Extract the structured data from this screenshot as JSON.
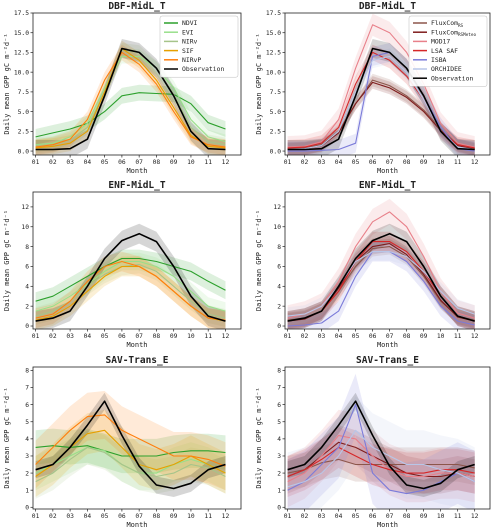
{
  "chart_data": [
    {
      "panel": "DBF-MidL_T (VI models)",
      "type": "line",
      "title": "DBF-MidL_T",
      "xlabel": "Month",
      "ylabel": "Daily mean GPP gC m⁻²d⁻¹",
      "ylim": [
        -0.5,
        17.5
      ],
      "yticks": [
        0.0,
        2.5,
        5.0,
        7.5,
        10.0,
        12.5,
        15.0,
        17.5
      ],
      "ytick_labels": [
        "0.0",
        "2.5",
        "5.0",
        "7.5",
        "10.0",
        "12.5",
        "15.0",
        "17.5"
      ],
      "xticks": [
        "01",
        "02",
        "03",
        "04",
        "05",
        "06",
        "07",
        "08",
        "09",
        "10",
        "11",
        "12"
      ],
      "legend_position": "top-right",
      "series": [
        {
          "name": "NDVI",
          "color": "#2ca02c",
          "band": 1.0,
          "values": [
            1.8,
            2.3,
            2.8,
            3.5,
            5.0,
            7.0,
            7.4,
            7.3,
            7.2,
            6.0,
            3.6,
            2.8
          ]
        },
        {
          "name": "EVI",
          "color": "#98df8a",
          "band": 0.9,
          "values": [
            0.8,
            1.0,
            1.8,
            3.5,
            8.0,
            12.0,
            12.0,
            10.5,
            8.0,
            4.0,
            1.8,
            1.2
          ]
        },
        {
          "name": "NIRv",
          "color": "#a6c48a",
          "band": 0.9,
          "values": [
            0.6,
            0.8,
            1.4,
            3.0,
            7.5,
            12.8,
            12.5,
            10.5,
            7.2,
            3.0,
            1.2,
            0.8
          ]
        },
        {
          "name": "SIF",
          "color": "#e6a000",
          "band": 1.0,
          "values": [
            0.4,
            0.6,
            1.0,
            2.5,
            7.5,
            13.0,
            11.5,
            9.0,
            5.5,
            2.0,
            0.6,
            0.4
          ]
        },
        {
          "name": "NIRvP",
          "color": "#ff7f0e",
          "band": 1.0,
          "values": [
            0.5,
            0.8,
            1.5,
            4.0,
            9.0,
            12.5,
            11.0,
            8.5,
            5.0,
            1.8,
            0.8,
            0.5
          ]
        },
        {
          "name": "Observation",
          "color": "#000000",
          "band": 1.2,
          "values": [
            0.2,
            0.2,
            0.3,
            1.5,
            7.0,
            13.0,
            12.5,
            10.5,
            7.0,
            2.5,
            0.3,
            0.2
          ]
        }
      ]
    },
    {
      "panel": "DBF-MidL_T (process models)",
      "type": "line",
      "title": "DBF-MidL_T",
      "xlabel": "Month",
      "ylabel": "Daily mean GPP gC m⁻²d⁻¹",
      "ylim": [
        -0.5,
        17.5
      ],
      "yticks": [
        0.0,
        2.5,
        5.0,
        7.5,
        10.0,
        12.5,
        15.0,
        17.5
      ],
      "ytick_labels": [
        "0.0",
        "2.5",
        "5.0",
        "7.5",
        "10.0",
        "12.5",
        "15.0",
        "17.5"
      ],
      "xticks": [
        "01",
        "02",
        "03",
        "04",
        "05",
        "06",
        "07",
        "08",
        "09",
        "10",
        "11",
        "12"
      ],
      "legend_position": "top-right",
      "series": [
        {
          "name": "FluxCom",
          "name_sub": "RS",
          "color": "#8c564b",
          "band": 0.8,
          "values": [
            0.3,
            0.4,
            0.8,
            2.5,
            6.0,
            9.0,
            8.3,
            7.0,
            5.2,
            2.8,
            0.8,
            0.3
          ]
        },
        {
          "name": "FluxCom",
          "name_sub": "RSMeteo",
          "color": "#7f1d1d",
          "band": 0.8,
          "values": [
            0.2,
            0.3,
            0.7,
            2.3,
            6.0,
            8.7,
            8.0,
            6.8,
            5.0,
            2.6,
            0.7,
            0.2
          ]
        },
        {
          "name": "MOD17",
          "color": "#e8808a",
          "band": 1.4,
          "values": [
            0.5,
            0.6,
            1.2,
            4.0,
            10.5,
            16.0,
            15.0,
            12.5,
            8.5,
            3.5,
            1.0,
            0.5
          ]
        },
        {
          "name": "LSA SAF",
          "color": "#d62728",
          "band": 1.0,
          "values": [
            0.4,
            0.5,
            1.0,
            3.0,
            8.5,
            12.5,
            11.5,
            9.5,
            6.5,
            2.5,
            0.8,
            0.4
          ]
        },
        {
          "name": "ISBA",
          "color": "#7b7bd9",
          "band": 1.2,
          "values": [
            0.0,
            0.0,
            0.1,
            0.2,
            1.0,
            12.0,
            12.5,
            10.5,
            7.0,
            3.0,
            0.3,
            0.0
          ]
        },
        {
          "name": "ORCHIDEE",
          "color": "#b8c6e8",
          "band": 1.0,
          "values": [
            0.2,
            0.3,
            0.7,
            2.5,
            7.5,
            11.5,
            12.0,
            10.0,
            6.5,
            2.5,
            0.5,
            0.2
          ]
        },
        {
          "name": "Observation",
          "color": "#000000",
          "band": 1.2,
          "values": [
            0.2,
            0.2,
            0.3,
            1.5,
            7.0,
            13.0,
            12.5,
            10.5,
            7.0,
            2.5,
            0.3,
            0.2
          ]
        }
      ]
    },
    {
      "panel": "ENF-MidL_T (VI models)",
      "type": "line",
      "title": "ENF-MidL_T",
      "xlabel": "Month",
      "ylabel": "Daily mean GPP gC m⁻²d⁻¹",
      "ylim": [
        -0.3,
        13.5
      ],
      "yticks": [
        0,
        2,
        4,
        6,
        8,
        10,
        12
      ],
      "ytick_labels": [
        "0",
        "2",
        "4",
        "6",
        "8",
        "10",
        "12"
      ],
      "xticks": [
        "01",
        "02",
        "03",
        "04",
        "05",
        "06",
        "07",
        "08",
        "09",
        "10",
        "11",
        "12"
      ],
      "series": [
        {
          "name": "NDVI",
          "color": "#2ca02c",
          "band": 0.9,
          "values": [
            2.5,
            3.0,
            4.0,
            5.0,
            6.0,
            6.8,
            6.8,
            6.5,
            6.0,
            5.5,
            4.5,
            3.6
          ]
        },
        {
          "name": "EVI",
          "color": "#98df8a",
          "band": 0.9,
          "values": [
            1.5,
            2.0,
            3.0,
            4.2,
            5.5,
            6.5,
            6.5,
            6.0,
            5.0,
            3.5,
            2.0,
            1.5
          ]
        },
        {
          "name": "NIRv",
          "color": "#a6c48a",
          "band": 0.9,
          "values": [
            1.0,
            1.5,
            2.5,
            4.0,
            5.2,
            6.0,
            6.2,
            5.5,
            4.0,
            2.5,
            1.2,
            0.8
          ]
        },
        {
          "name": "SIF",
          "color": "#e6a000",
          "band": 1.0,
          "values": [
            0.6,
            1.0,
            2.0,
            3.5,
            5.0,
            6.0,
            6.0,
            5.0,
            3.5,
            2.0,
            0.8,
            0.5
          ]
        },
        {
          "name": "NIRvP",
          "color": "#ff7f0e",
          "band": 1.0,
          "values": [
            0.8,
            1.2,
            2.5,
            4.5,
            6.0,
            6.5,
            6.0,
            5.0,
            3.5,
            2.0,
            0.8,
            0.6
          ]
        },
        {
          "name": "Observation",
          "color": "#000000",
          "band": 1.0,
          "values": [
            0.5,
            0.8,
            1.5,
            4.0,
            6.8,
            8.6,
            9.3,
            8.5,
            6.0,
            3.0,
            1.0,
            0.5
          ]
        }
      ]
    },
    {
      "panel": "ENF-MidL_T (process models)",
      "type": "line",
      "title": "ENF-MidL_T",
      "xlabel": "Month",
      "ylabel": "Daily mean GPP gC m⁻²d⁻¹",
      "ylim": [
        -0.3,
        13.5
      ],
      "yticks": [
        0,
        2,
        4,
        6,
        8,
        10,
        12
      ],
      "ytick_labels": [
        "0",
        "2",
        "4",
        "6",
        "8",
        "10",
        "12"
      ],
      "xticks": [
        "01",
        "02",
        "03",
        "04",
        "05",
        "06",
        "07",
        "08",
        "09",
        "10",
        "11",
        "12"
      ],
      "series": [
        {
          "name": "FluxCom",
          "name_sub": "RS",
          "color": "#8c564b",
          "band": 0.8,
          "values": [
            0.6,
            0.8,
            1.5,
            3.5,
            6.0,
            7.8,
            8.0,
            7.0,
            5.0,
            2.5,
            1.0,
            0.6
          ]
        },
        {
          "name": "FluxCom",
          "name_sub": "RSMeteo",
          "color": "#7f1d1d",
          "band": 0.8,
          "values": [
            0.5,
            0.7,
            1.5,
            3.8,
            6.5,
            8.0,
            8.3,
            7.2,
            5.2,
            2.6,
            0.9,
            0.5
          ]
        },
        {
          "name": "MOD17",
          "color": "#e8808a",
          "band": 1.3,
          "values": [
            0.8,
            1.2,
            2.0,
            4.5,
            8.0,
            10.5,
            11.5,
            10.0,
            7.0,
            3.5,
            1.3,
            0.8
          ]
        },
        {
          "name": "LSA SAF",
          "color": "#d62728",
          "band": 1.0,
          "values": [
            0.5,
            0.8,
            1.5,
            3.5,
            6.5,
            8.5,
            8.5,
            7.5,
            5.5,
            3.0,
            1.0,
            0.5
          ]
        },
        {
          "name": "ISBA",
          "color": "#7b7bd9",
          "band": 1.0,
          "values": [
            0.0,
            0.1,
            0.3,
            1.5,
            5.0,
            7.5,
            7.5,
            6.5,
            4.5,
            2.0,
            0.5,
            0.1
          ]
        },
        {
          "name": "ORCHIDEE",
          "color": "#b8c6e8",
          "band": 0.9,
          "values": [
            1.0,
            1.2,
            2.0,
            4.0,
            6.5,
            7.5,
            7.5,
            7.0,
            5.5,
            3.5,
            1.8,
            1.2
          ]
        },
        {
          "name": "Observation",
          "color": "#000000",
          "band": 1.0,
          "values": [
            0.5,
            0.8,
            1.5,
            4.0,
            6.8,
            8.6,
            9.3,
            8.5,
            6.0,
            3.0,
            1.0,
            0.5
          ]
        }
      ]
    },
    {
      "panel": "SAV-Trans_E (VI models)",
      "type": "line",
      "title": "SAV-Trans_E",
      "xlabel": "Month",
      "ylabel": "Daily mean GPP gC m⁻²d⁻¹",
      "ylim": [
        -0.1,
        8.2
      ],
      "yticks": [
        0,
        1,
        2,
        3,
        4,
        5,
        6,
        7,
        8
      ],
      "ytick_labels": [
        "0",
        "1",
        "2",
        "3",
        "4",
        "5",
        "6",
        "7",
        "8"
      ],
      "xticks": [
        "01",
        "02",
        "03",
        "04",
        "05",
        "06",
        "07",
        "08",
        "09",
        "10",
        "11",
        "12"
      ],
      "series": [
        {
          "name": "NDVI",
          "color": "#2ca02c",
          "band": 1.0,
          "values": [
            3.5,
            3.6,
            3.5,
            3.6,
            3.3,
            3.0,
            3.0,
            3.0,
            3.2,
            3.3,
            3.3,
            3.2
          ]
        },
        {
          "name": "EVI",
          "color": "#98df8a",
          "band": 1.0,
          "values": [
            2.0,
            2.5,
            3.0,
            3.5,
            3.3,
            2.5,
            2.0,
            2.0,
            2.5,
            2.8,
            2.5,
            2.0
          ]
        },
        {
          "name": "NIRv",
          "color": "#a6c48a",
          "band": 1.0,
          "values": [
            1.5,
            2.0,
            2.8,
            3.5,
            3.2,
            2.5,
            2.0,
            1.8,
            2.0,
            2.5,
            2.3,
            1.8
          ]
        },
        {
          "name": "SIF",
          "color": "#e6a000",
          "band": 1.2,
          "values": [
            1.8,
            2.5,
            3.5,
            4.3,
            4.5,
            3.5,
            2.5,
            2.2,
            2.5,
            3.0,
            2.5,
            2.0
          ]
        },
        {
          "name": "NIRvP",
          "color": "#ff7f0e",
          "band": 1.4,
          "values": [
            2.5,
            3.5,
            4.5,
            5.3,
            5.4,
            4.5,
            4.0,
            3.5,
            3.0,
            3.0,
            2.8,
            2.4
          ]
        },
        {
          "name": "Observation",
          "color": "#000000",
          "band": 0.5,
          "values": [
            2.2,
            2.5,
            3.5,
            4.8,
            6.2,
            4.2,
            2.4,
            1.3,
            1.1,
            1.4,
            2.2,
            2.5
          ]
        }
      ]
    },
    {
      "panel": "SAV-Trans_E (process models)",
      "type": "line",
      "title": "SAV-Trans_E",
      "xlabel": "Month",
      "ylabel": "Daily mean GPP gC m⁻²d⁻¹",
      "ylim": [
        -0.1,
        8.2
      ],
      "yticks": [
        0,
        1,
        2,
        3,
        4,
        5,
        6,
        7,
        8
      ],
      "ytick_labels": [
        "0",
        "1",
        "2",
        "3",
        "4",
        "5",
        "6",
        "7",
        "8"
      ],
      "xticks": [
        "01",
        "02",
        "03",
        "04",
        "05",
        "06",
        "07",
        "08",
        "09",
        "10",
        "11",
        "12"
      ],
      "series": [
        {
          "name": "FluxCom",
          "name_sub": "RS",
          "color": "#8c564b",
          "band": 1.0,
          "values": [
            2.0,
            2.2,
            2.6,
            2.8,
            2.5,
            2.5,
            2.5,
            2.5,
            2.5,
            2.5,
            2.5,
            2.3
          ]
        },
        {
          "name": "FluxCom",
          "name_sub": "RSMeteo",
          "color": "#7f1d1d",
          "band": 1.0,
          "values": [
            1.8,
            2.2,
            3.0,
            3.8,
            3.5,
            3.0,
            2.5,
            2.0,
            1.8,
            1.8,
            2.0,
            1.8
          ]
        },
        {
          "name": "MOD17",
          "color": "#e8808a",
          "band": 1.5,
          "values": [
            1.5,
            2.0,
            3.0,
            4.2,
            4.0,
            3.0,
            2.2,
            1.8,
            1.8,
            2.0,
            2.0,
            1.8
          ]
        },
        {
          "name": "LSA SAF",
          "color": "#d62728",
          "band": 1.2,
          "values": [
            1.8,
            2.2,
            2.8,
            3.5,
            3.0,
            2.5,
            2.2,
            2.0,
            2.0,
            2.2,
            2.2,
            2.0
          ]
        },
        {
          "name": "ISBA",
          "color": "#7b7bd9",
          "band": 1.8,
          "values": [
            1.0,
            1.5,
            2.5,
            3.5,
            6.0,
            2.0,
            1.0,
            0.8,
            1.0,
            1.5,
            2.0,
            1.5
          ]
        },
        {
          "name": "ORCHIDEE",
          "color": "#b8c6e8",
          "band": 2.0,
          "values": [
            1.2,
            1.5,
            2.0,
            3.0,
            4.5,
            3.5,
            3.0,
            2.5,
            2.5,
            2.2,
            2.0,
            1.5
          ]
        },
        {
          "name": "Observation",
          "color": "#000000",
          "band": 0.5,
          "values": [
            2.2,
            2.5,
            3.5,
            4.8,
            6.2,
            4.2,
            2.4,
            1.3,
            1.1,
            1.4,
            2.2,
            2.5
          ]
        }
      ]
    }
  ]
}
